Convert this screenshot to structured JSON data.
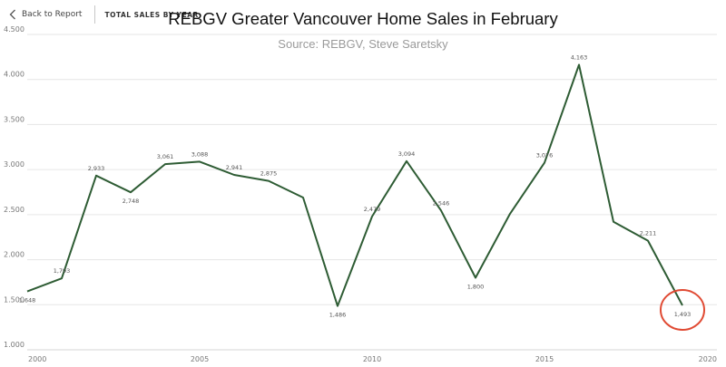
{
  "nav": {
    "back_label": "Back to Report",
    "crumb": "TOTAL SALES BY YEAR"
  },
  "colors": {
    "line": "#2e5c34",
    "highlight": "#e04a33",
    "grid": "#e6e6e6"
  },
  "chart_data": {
    "type": "line",
    "title": "REBGV Greater Vancouver Home Sales in February",
    "subtitle": "Source: REBGV, Steve Saretsky",
    "xlabel": "",
    "ylabel": "",
    "xlim": [
      2000,
      2020
    ],
    "ylim": [
      1000,
      4500
    ],
    "x_ticks": [
      "2000",
      "2005",
      "2010",
      "2015",
      "2020"
    ],
    "y_ticks": [
      "1.000",
      "1.500",
      "2.000",
      "2.500",
      "3.000",
      "3.500",
      "4.000",
      "4.500"
    ],
    "grid": true,
    "series": [
      {
        "x": [
          2000,
          2001,
          2002,
          2003,
          2004,
          2005,
          2006,
          2007,
          2008,
          2009,
          2010,
          2011,
          2012,
          2013,
          2014,
          2015,
          2016,
          2017,
          2018,
          2019
        ],
        "values": [
          1648,
          1793,
          2933,
          2748,
          3061,
          3088,
          2941,
          2875,
          2690,
          1486,
          2479,
          3094,
          2546,
          1800,
          2510,
          3076,
          4163,
          2420,
          2211,
          1493
        ],
        "labels": [
          "1,648",
          "1,793",
          "2,933",
          "2,748",
          "3,061",
          "3,088",
          "2,941",
          "2,875",
          "",
          "1,486",
          "2,479",
          "3,094",
          "2,546",
          "1,800",
          "",
          "3,076",
          "4,163",
          "",
          "2,211",
          "1,493"
        ]
      }
    ],
    "highlight": {
      "x": 2019,
      "label": "1,493"
    }
  }
}
